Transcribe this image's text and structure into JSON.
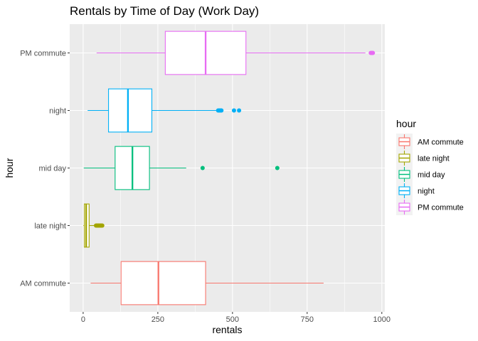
{
  "chart_data": {
    "type": "boxplot",
    "orientation": "horizontal",
    "title": "Rentals by Time of Day (Work Day)",
    "xlabel": "rentals",
    "ylabel": "hour",
    "xlim": [
      -45,
      1010
    ],
    "xticks": [
      0,
      250,
      500,
      750,
      1000
    ],
    "grid": true,
    "legend": {
      "title": "hour",
      "placement": "right"
    },
    "categories": [
      "PM commute",
      "night",
      "mid day",
      "late night",
      "AM commute"
    ],
    "series": [
      {
        "name": "PM commute",
        "color": "#E76BF3",
        "whisker_low": 45,
        "q1": 275,
        "median": 410,
        "q3": 545,
        "whisker_high": 945,
        "outliers": [
          963,
          967,
          970
        ]
      },
      {
        "name": "night",
        "color": "#00B0F6",
        "whisker_low": 15,
        "q1": 85,
        "median": 150,
        "q3": 230,
        "whisker_high": 450,
        "outliers": [
          452,
          456,
          460,
          463,
          505,
          522
        ]
      },
      {
        "name": "mid day",
        "color": "#00BF7D",
        "whisker_low": 2,
        "q1": 107,
        "median": 165,
        "q3": 222,
        "whisker_high": 345,
        "outliers": [
          400,
          650
        ]
      },
      {
        "name": "late night",
        "color": "#A3A500",
        "whisker_low": 1,
        "q1": 4,
        "median": 10,
        "q3": 20,
        "whisker_high": 40,
        "outliers": [
          43,
          46,
          49,
          52,
          55,
          58,
          61,
          64
        ]
      },
      {
        "name": "AM commute",
        "color": "#F8766D",
        "whisker_low": 25,
        "q1": 127,
        "median": 252,
        "q3": 410,
        "whisker_high": 805,
        "outliers": []
      }
    ],
    "legend_order": [
      "AM commute",
      "late night",
      "mid day",
      "night",
      "PM commute"
    ]
  }
}
